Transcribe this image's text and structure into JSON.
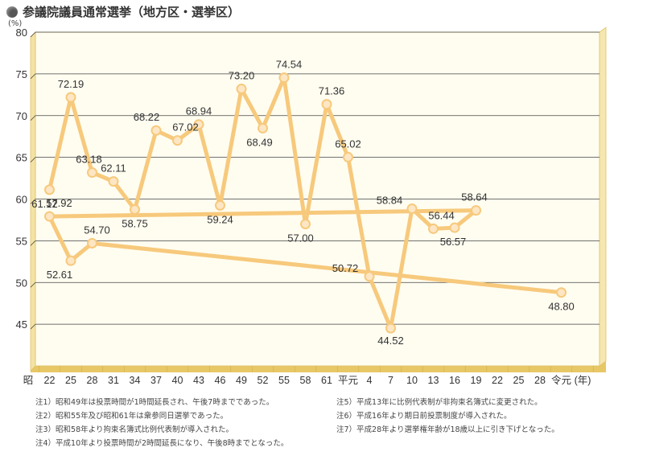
{
  "title": "参議院議員通常選挙（地方区・選挙区）",
  "unit": "(%)",
  "colors": {
    "line": "#f7c97c",
    "marker": "#fde6c4",
    "plot_bg": "#fffdf0",
    "plot_border": "#e0c46a",
    "grid": "#444444"
  },
  "chart_data": {
    "type": "line",
    "title": "参議院議員通常選挙（地方区・選挙区）",
    "ylabel": "(%)",
    "xlabel": "(年)",
    "ylim": [
      40,
      80
    ],
    "yticks": [
      45,
      50,
      55,
      60,
      65,
      70,
      75,
      80
    ],
    "x_ticks": [
      "昭",
      "22",
      "25",
      "28",
      "31",
      "34",
      "37",
      "40",
      "43",
      "46",
      "49",
      "52",
      "55",
      "58",
      "61",
      "平元",
      "4",
      "7",
      "10",
      "13",
      "16",
      "19",
      "22",
      "25",
      "28",
      "令元",
      "(年)"
    ],
    "grid": true,
    "series": [
      {
        "x": [
          "22",
          "25",
          "28",
          "31",
          "34",
          "37",
          "40",
          "43",
          "46",
          "49",
          "52",
          "55",
          "58",
          "61",
          "平元",
          "4",
          "7",
          "10",
          "13",
          "16",
          "19",
          "22",
          "25",
          "28",
          "令元"
        ],
        "values": [
          61.12,
          72.19,
          63.18,
          62.11,
          58.75,
          68.22,
          67.02,
          68.94,
          59.24,
          73.2,
          68.49,
          74.54,
          57.0,
          71.36,
          65.02,
          50.72,
          44.52,
          58.84,
          56.44,
          56.57,
          58.64,
          57.92,
          52.61,
          54.7,
          48.8
        ],
        "labels": [
          "61.12",
          "72.19",
          "63.18",
          "62.11",
          "58.75",
          "68.22",
          "67.02",
          "68.94",
          "59.24",
          "73.20",
          "68.49",
          "74.54",
          "57.00",
          "71.36",
          "65.02",
          "50.72",
          "44.52",
          "58.84",
          "56.44",
          "56.57",
          "58.64",
          "57.92",
          "52.61",
          "54.70",
          "48.80"
        ]
      }
    ]
  },
  "notes_left": [
    "注1）昭和49年は投票時間が1時間延長され、午後7時までであった。",
    "注2）昭和55年及び昭和61年は衆参同日選挙であった。",
    "注3）昭和58年より拘束名簿式比例代表制が導入された。",
    "注4）平成10年より投票時間が2時間延長になり、午後8時までとなった。"
  ],
  "notes_right": [
    "注5）平成13年に比例代表制が非拘束名簿式に変更された。",
    "注6）平成16年より期日前投票制度が導入された。",
    "注7）平成28年より選挙権年齢が18歳以上に引き下げとなった。"
  ]
}
